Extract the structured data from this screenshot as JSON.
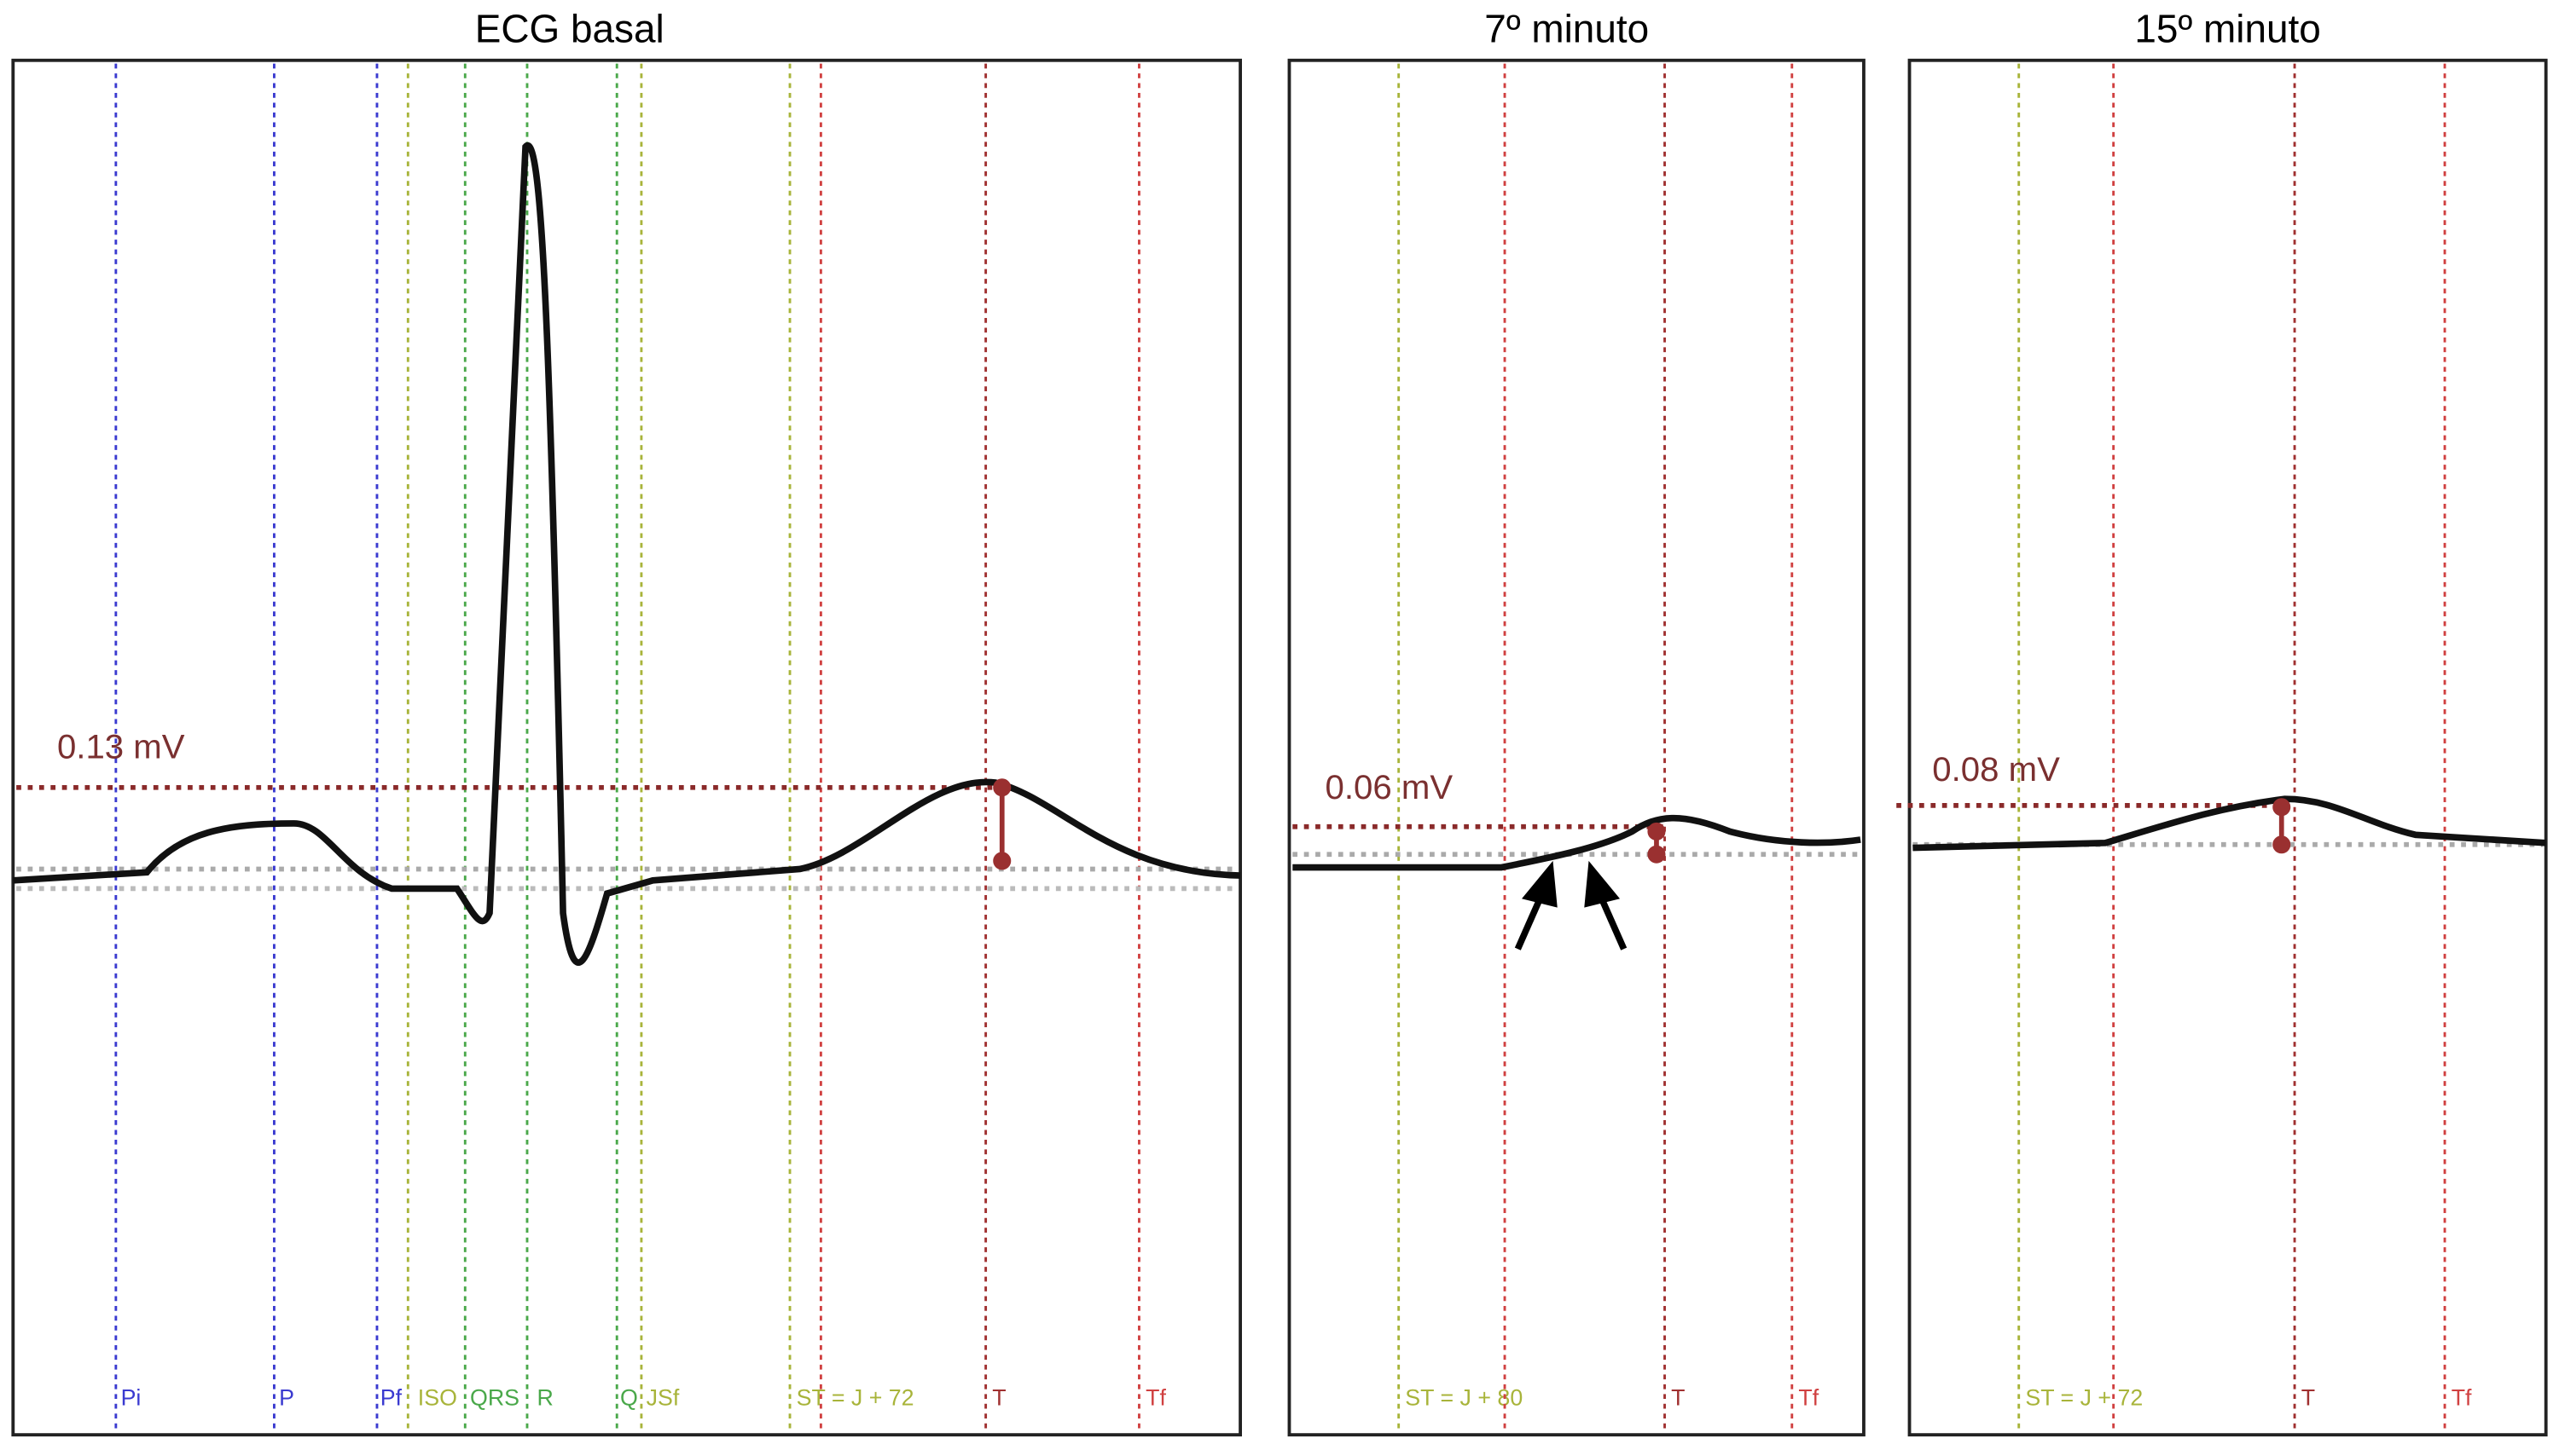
{
  "panels": [
    {
      "title": "ECG basal",
      "measurement": "0.13 mV",
      "markers": [
        {
          "label": "Pi",
          "color": "#3a3ad0"
        },
        {
          "label": "P",
          "color": "#3a3ad0"
        },
        {
          "label": "Pf",
          "color": "#3a3ad0"
        },
        {
          "label": "ISO",
          "color": "#a8b43a"
        },
        {
          "label": "QRS",
          "color": "#4aa84a"
        },
        {
          "label": "R",
          "color": "#4aa84a"
        },
        {
          "label": "Q",
          "color": "#4aa84a"
        },
        {
          "label": "JSf",
          "color": "#a8b43a"
        },
        {
          "label": "ST = J + 72",
          "color": "#a8b43a"
        },
        {
          "label": "",
          "color": "#d04040"
        },
        {
          "label": "T",
          "color": "#a03030"
        },
        {
          "label": "Tf",
          "color": "#d04040"
        }
      ]
    },
    {
      "title": "7º minuto",
      "measurement": "0.06 mV",
      "markers": [
        {
          "label": "ST = J + 80",
          "color": "#a8b43a"
        },
        {
          "label": "",
          "color": "#d04040"
        },
        {
          "label": "T",
          "color": "#a03030"
        },
        {
          "label": "Tf",
          "color": "#d04040"
        }
      ]
    },
    {
      "title": "15º minuto",
      "measurement": "0.08 mV",
      "markers": [
        {
          "label": "ST = J + 72",
          "color": "#a8b43a"
        },
        {
          "label": "",
          "color": "#d04040"
        },
        {
          "label": "T",
          "color": "#a03030"
        },
        {
          "label": "Tf",
          "color": "#d04040"
        }
      ]
    }
  ]
}
